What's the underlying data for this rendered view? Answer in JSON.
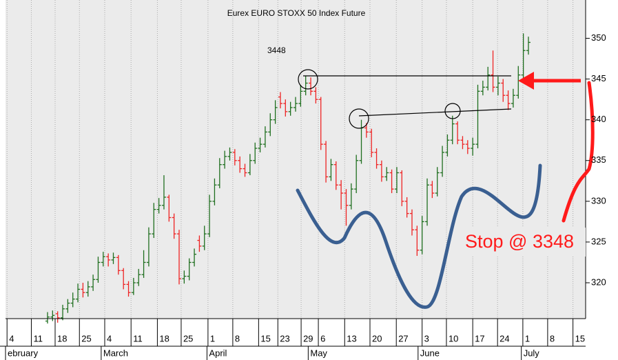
{
  "chart_data": {
    "type": "ohlc",
    "title": "Eurex EURO STOXX 50 Index Future",
    "annotations": [
      "3448",
      "Stop @ 3348"
    ],
    "up_color": "#1e6e1e",
    "down_color": "#ee2222",
    "grid": true,
    "ylim": [
      315.6,
      354.7
    ],
    "yticks": [
      320,
      325,
      330,
      335,
      340,
      345,
      350
    ],
    "xlim": [
      -0.3,
      114.3
    ],
    "xticks": [
      {
        "value": 0,
        "label": "4"
      },
      {
        "value": 4.8,
        "label": "11"
      },
      {
        "value": 9.5,
        "label": "18"
      },
      {
        "value": 14.3,
        "label": "25"
      },
      {
        "value": 19.3,
        "label": "4"
      },
      {
        "value": 24.5,
        "label": "11"
      },
      {
        "value": 29.7,
        "label": "18"
      },
      {
        "value": 34.4,
        "label": "25"
      },
      {
        "value": 39.7,
        "label": "1"
      },
      {
        "value": 44.6,
        "label": "8"
      },
      {
        "value": 49.7,
        "label": "15"
      },
      {
        "value": 53.5,
        "label": "23"
      },
      {
        "value": 58.1,
        "label": "29"
      },
      {
        "value": 61.5,
        "label": "6"
      },
      {
        "value": 66.7,
        "label": "13"
      },
      {
        "value": 71.7,
        "label": "20"
      },
      {
        "value": 76.9,
        "label": "27"
      },
      {
        "value": 82.0,
        "label": "3"
      },
      {
        "value": 86.8,
        "label": "10"
      },
      {
        "value": 92.0,
        "label": "17"
      },
      {
        "value": 96.9,
        "label": "24"
      },
      {
        "value": 101.9,
        "label": "1"
      },
      {
        "value": 106.8,
        "label": "8"
      },
      {
        "value": 111.8,
        "label": "15"
      }
    ],
    "month_ticks": [
      {
        "value": -0.3,
        "label": "ebruary"
      },
      {
        "value": 18.6,
        "label": "March"
      },
      {
        "value": 39.5,
        "label": "April"
      },
      {
        "value": 59.5,
        "label": "May"
      },
      {
        "value": 81.2,
        "label": "June"
      },
      {
        "value": 101.6,
        "label": "July"
      }
    ],
    "x": [
      8,
      9,
      10,
      11,
      12,
      13,
      14,
      15,
      16,
      17,
      18,
      19,
      20,
      21,
      22,
      23,
      24,
      25,
      26,
      27,
      28,
      29,
      30,
      31,
      32,
      33,
      34,
      35,
      36,
      37,
      38,
      39,
      40,
      41,
      42,
      43,
      44,
      45,
      46,
      47,
      48,
      49,
      50,
      51,
      52,
      53,
      54,
      55,
      56,
      57,
      58,
      59,
      60,
      61,
      62,
      63,
      64,
      65,
      66,
      67,
      68,
      69,
      70,
      71,
      72,
      73,
      74,
      75,
      76,
      77,
      78,
      79,
      80,
      81,
      82,
      83,
      84,
      85,
      86,
      87,
      88,
      89,
      90,
      91,
      92,
      93,
      94,
      95,
      96,
      97,
      98,
      99,
      100,
      101,
      102,
      103
    ],
    "open": [
      315.3,
      315.8,
      316.2,
      315.7,
      316.8,
      317.5,
      318.0,
      319.2,
      318.8,
      319.5,
      320.4,
      322.5,
      323.2,
      322.8,
      323.1,
      321.5,
      319.8,
      318.8,
      320.0,
      321.0,
      322.5,
      326.0,
      329.0,
      329.5,
      330.5,
      328.0,
      326.0,
      320.5,
      320.8,
      322.5,
      325.2,
      324.5,
      326.0,
      330.0,
      332.0,
      334.5,
      335.5,
      336.0,
      335.0,
      334.0,
      333.5,
      335.0,
      336.5,
      337.0,
      338.5,
      340.0,
      342.8,
      342.0,
      341.0,
      341.5,
      342.0,
      343.5,
      344.5,
      343.5,
      342.5,
      337.0,
      333.0,
      334.5,
      332.0,
      331.0,
      329.5,
      331.5,
      335.0,
      339.0,
      338.5,
      336.0,
      334.5,
      333.0,
      333.5,
      331.5,
      333.5,
      330.0,
      328.5,
      326.5,
      324.0,
      327.5,
      332.0,
      331.0,
      333.5,
      336.0,
      337.5,
      339.5,
      337.5,
      337.0,
      336.5,
      337.0,
      343.5,
      344.0,
      345.5,
      344.0,
      344.5,
      343.0,
      342.0,
      343.0,
      345.5,
      348.5
    ],
    "high": [
      316.4,
      316.6,
      316.5,
      317.3,
      318.0,
      318.8,
      319.9,
      320.0,
      320.2,
      321.0,
      323.2,
      323.8,
      323.6,
      323.7,
      323.4,
      321.8,
      320.2,
      320.6,
      321.7,
      324.0,
      326.8,
      329.8,
      330.4,
      333.2,
      330.8,
      328.5,
      326.5,
      321.5,
      323.0,
      324.2,
      325.8,
      327.0,
      330.8,
      332.8,
      335.3,
      336.2,
      336.6,
      336.4,
      335.5,
      334.6,
      335.8,
      337.2,
      337.8,
      339.2,
      340.8,
      342.4,
      343.4,
      342.5,
      342.2,
      342.8,
      344.3,
      345.4,
      345.2,
      344.0,
      342.8,
      337.4,
      335.2,
      334.9,
      332.6,
      331.5,
      332.2,
      335.7,
      340.0,
      339.6,
      338.9,
      336.5,
      335.0,
      334.2,
      333.9,
      334.2,
      333.8,
      330.5,
      329.0,
      327.0,
      328.2,
      332.8,
      332.5,
      334.2,
      336.8,
      338.2,
      340.5,
      339.8,
      338.0,
      337.5,
      337.8,
      344.3,
      344.8,
      346.5,
      348.5,
      345.3,
      345.0,
      343.6,
      343.8,
      346.6,
      350.6,
      350.2
    ],
    "low": [
      315.0,
      315.3,
      315.1,
      315.4,
      316.3,
      317.0,
      317.6,
      318.2,
      318.3,
      319.0,
      320.0,
      322.0,
      322.0,
      322.3,
      321.0,
      319.2,
      318.3,
      318.5,
      319.6,
      320.6,
      322.0,
      325.5,
      328.5,
      329.0,
      327.5,
      325.4,
      319.8,
      319.9,
      320.3,
      322.0,
      323.8,
      324.0,
      325.6,
      329.5,
      331.6,
      334.0,
      335.0,
      334.4,
      333.5,
      333.0,
      333.2,
      334.6,
      336.0,
      336.6,
      338.0,
      339.5,
      341.4,
      340.4,
      340.5,
      341.0,
      341.6,
      343.0,
      343.0,
      342.0,
      336.3,
      332.3,
      332.5,
      331.4,
      329.0,
      327.0,
      329.0,
      331.0,
      334.6,
      337.8,
      335.4,
      334.0,
      332.4,
      332.5,
      331.0,
      331.0,
      329.4,
      328.0,
      325.8,
      323.3,
      323.5,
      327.0,
      330.4,
      330.6,
      333.0,
      335.5,
      337.0,
      337.0,
      336.4,
      335.8,
      335.6,
      336.5,
      343.0,
      343.6,
      343.4,
      343.0,
      342.2,
      341.2,
      341.5,
      342.6,
      345.0,
      348.0
    ],
    "close": [
      315.8,
      316.0,
      315.7,
      316.8,
      317.5,
      318.0,
      319.2,
      318.8,
      319.5,
      320.4,
      322.5,
      323.2,
      322.8,
      323.1,
      321.5,
      319.8,
      318.8,
      320.0,
      321.0,
      322.5,
      326.0,
      329.0,
      329.5,
      330.5,
      328.0,
      326.0,
      320.5,
      320.8,
      322.5,
      323.5,
      324.5,
      326.0,
      330.0,
      332.0,
      334.5,
      335.5,
      336.0,
      335.0,
      334.0,
      333.5,
      335.0,
      336.5,
      337.0,
      338.5,
      340.0,
      341.5,
      342.0,
      341.0,
      341.5,
      342.0,
      343.5,
      344.5,
      343.5,
      342.5,
      337.0,
      333.0,
      334.5,
      332.0,
      331.0,
      329.5,
      331.5,
      335.0,
      339.0,
      338.5,
      336.0,
      334.5,
      333.0,
      333.5,
      331.5,
      333.5,
      330.0,
      328.5,
      326.5,
      324.0,
      327.5,
      332.0,
      331.0,
      333.5,
      336.0,
      337.5,
      339.5,
      337.5,
      337.0,
      336.5,
      337.0,
      343.5,
      344.0,
      345.5,
      344.0,
      344.5,
      343.0,
      342.0,
      343.0,
      345.5,
      348.5,
      349.5
    ]
  }
}
